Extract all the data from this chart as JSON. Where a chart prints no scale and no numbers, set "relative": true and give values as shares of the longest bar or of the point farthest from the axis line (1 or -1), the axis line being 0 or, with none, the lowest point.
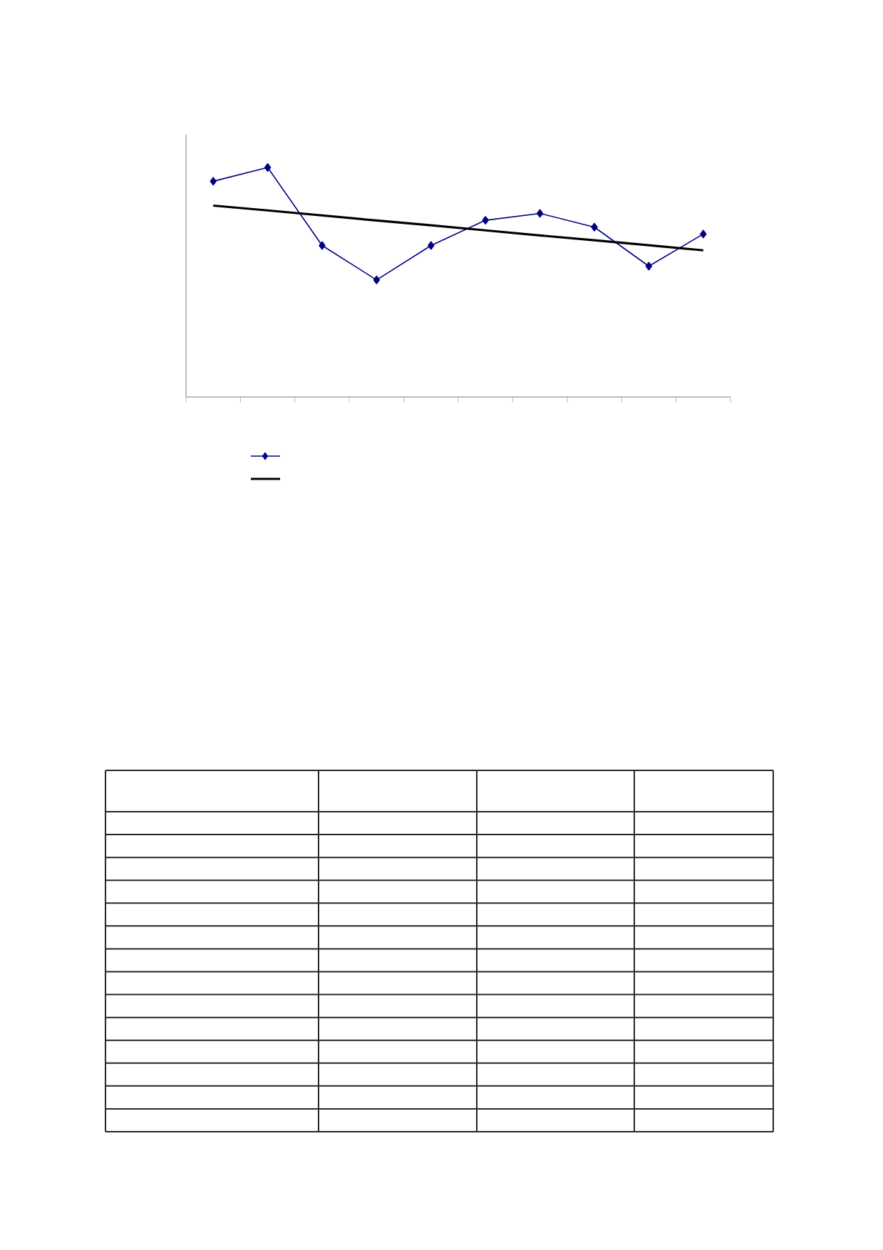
{
  "chart_data": {
    "type": "line",
    "relative": true,
    "categories": [
      null,
      null,
      null,
      null,
      null,
      null,
      null,
      null,
      null,
      null
    ],
    "series": [
      {
        "color": "#000080",
        "marker": "diamond",
        "values": [
          0.94,
          1,
          0.66,
          0.51,
          0.66,
          0.77,
          0.8,
          0.74,
          0.57,
          0.71
        ]
      },
      {
        "color": "#000000",
        "marker": "none",
        "values": [
          0.834,
          0.813,
          0.791,
          0.769,
          0.748,
          0.726,
          0.704,
          0.683,
          0.661,
          0.639
        ]
      }
    ],
    "grid": false
  }
}
